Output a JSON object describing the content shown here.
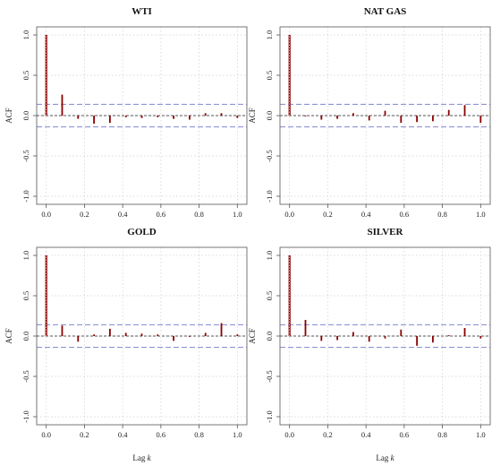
{
  "chart_data": [
    {
      "type": "bar",
      "title": "WTI",
      "ylabel": "ACF",
      "xlabel": "",
      "ylim": [
        -1.1,
        1.1
      ],
      "xlim": [
        -0.05,
        1.05
      ],
      "x_ticks": [
        "0.0",
        "0.2",
        "0.4",
        "0.6",
        "0.8",
        "1.0"
      ],
      "y_ticks": [
        "-1.0",
        "-0.5",
        "0.0",
        "0.5",
        "1.0"
      ],
      "confidence_band": [
        0.14,
        -0.14
      ],
      "grid": true,
      "x": [
        0,
        0.0833,
        0.1667,
        0.25,
        0.3333,
        0.4167,
        0.5,
        0.5833,
        0.6667,
        0.75,
        0.8333,
        0.9167,
        1.0
      ],
      "values": [
        1.0,
        0.26,
        -0.04,
        -0.1,
        -0.09,
        -0.02,
        -0.03,
        -0.02,
        -0.04,
        -0.05,
        0.03,
        0.03,
        -0.03
      ]
    },
    {
      "type": "bar",
      "title": "NAT GAS",
      "ylabel": "ACF",
      "xlabel": "",
      "ylim": [
        -1.1,
        1.1
      ],
      "xlim": [
        -0.05,
        1.05
      ],
      "x_ticks": [
        "0.0",
        "0.2",
        "0.4",
        "0.6",
        "0.8",
        "1.0"
      ],
      "y_ticks": [
        "-1.0",
        "-0.5",
        "0.0",
        "0.5",
        "1.0"
      ],
      "confidence_band": [
        0.14,
        -0.14
      ],
      "grid": true,
      "x": [
        0,
        0.0833,
        0.1667,
        0.25,
        0.3333,
        0.4167,
        0.5,
        0.5833,
        0.6667,
        0.75,
        0.8333,
        0.9167,
        1.0
      ],
      "values": [
        1.0,
        -0.01,
        -0.05,
        -0.04,
        0.03,
        -0.06,
        0.06,
        -0.09,
        -0.08,
        -0.07,
        0.07,
        0.13,
        -0.09
      ]
    },
    {
      "type": "bar",
      "title": "GOLD",
      "ylabel": "ACF",
      "xlabel": "Lag k",
      "ylim": [
        -1.1,
        1.1
      ],
      "xlim": [
        -0.05,
        1.05
      ],
      "x_ticks": [
        "0.0",
        "0.2",
        "0.4",
        "0.6",
        "0.8",
        "1.0"
      ],
      "y_ticks": [
        "-1.0",
        "-0.5",
        "0.0",
        "0.5",
        "1.0"
      ],
      "confidence_band": [
        0.14,
        -0.14
      ],
      "grid": true,
      "x": [
        0,
        0.0833,
        0.1667,
        0.25,
        0.3333,
        0.4167,
        0.5,
        0.5833,
        0.6667,
        0.75,
        0.8333,
        0.9167,
        1.0
      ],
      "values": [
        1.0,
        0.13,
        -0.07,
        0.02,
        0.09,
        0.04,
        0.03,
        0.02,
        -0.06,
        -0.01,
        0.04,
        0.16,
        0.02
      ]
    },
    {
      "type": "bar",
      "title": "SILVER",
      "ylabel": "ACF",
      "xlabel": "Lag k",
      "ylim": [
        -1.1,
        1.1
      ],
      "xlim": [
        -0.05,
        1.05
      ],
      "x_ticks": [
        "0.0",
        "0.2",
        "0.4",
        "0.6",
        "0.8",
        "1.0"
      ],
      "y_ticks": [
        "-1.0",
        "-0.5",
        "0.0",
        "0.5",
        "1.0"
      ],
      "confidence_band": [
        0.14,
        -0.14
      ],
      "grid": true,
      "x": [
        0,
        0.0833,
        0.1667,
        0.25,
        0.3333,
        0.4167,
        0.5,
        0.5833,
        0.6667,
        0.75,
        0.8333,
        0.9167,
        1.0
      ],
      "values": [
        1.0,
        0.2,
        -0.06,
        -0.05,
        0.05,
        -0.07,
        -0.03,
        0.08,
        -0.12,
        -0.08,
        0.01,
        0.1,
        -0.03
      ]
    }
  ],
  "colors": {
    "bar": "#8b0000",
    "band": "#8f93d8",
    "zero_line": "#222222",
    "grid": "#cfcfcf",
    "frame": "#555555"
  }
}
